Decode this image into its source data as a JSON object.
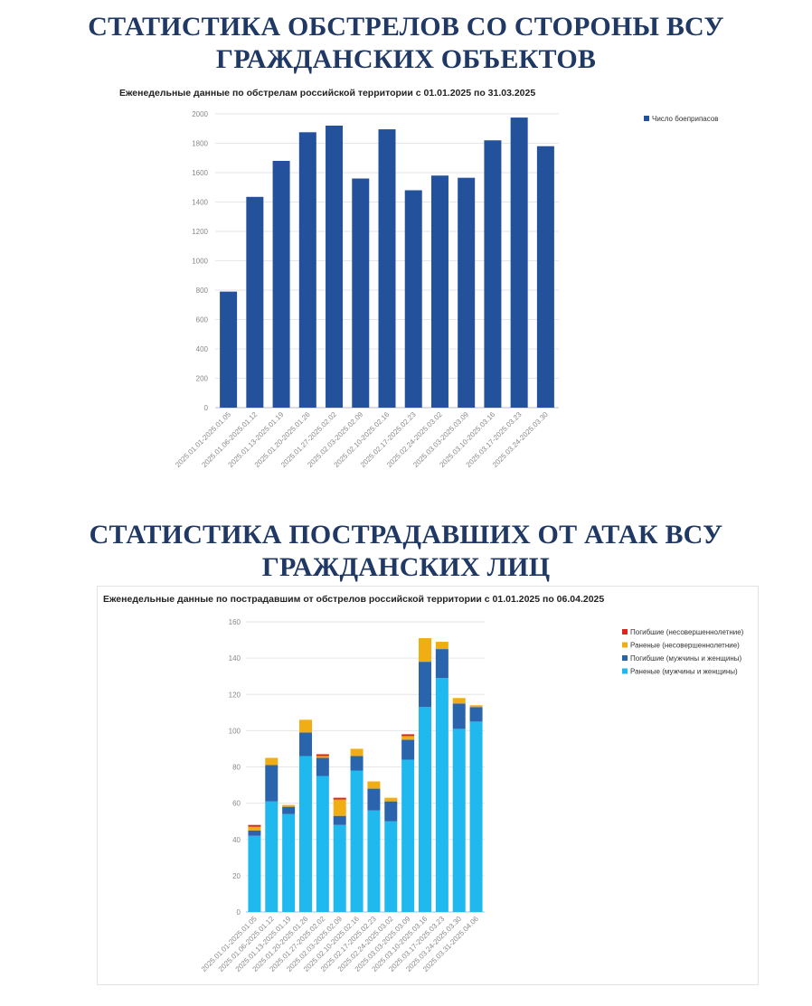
{
  "headings": {
    "first": [
      "СТАТИСТИКА ОБСТРЕЛОВ СО СТОРОНЫ ВСУ",
      "ГРАЖДАНСКИХ ОБЪЕКТОВ"
    ],
    "second": [
      "СТАТИСТИКА ПОСТРАДАВШИХ ОТ АТАК ВСУ",
      "ГРАЖДАНСКИХ ЛИЦ"
    ]
  },
  "colors": {
    "heading": "#1f3864",
    "bar_dark": "#23519c",
    "wounded_adult": "#1fb8ef",
    "killed_adult": "#2a64ad",
    "wounded_minor": "#f0ae14",
    "killed_minor": "#d42b1e"
  },
  "chart_data": [
    {
      "type": "bar",
      "title": "Еженедельные данные по обстрелам российской территории с 01.01.2025 по 31.03.2025",
      "xlabel": "",
      "ylabel": "",
      "ylim": [
        0,
        2000
      ],
      "yticks": [
        0,
        200,
        400,
        600,
        800,
        1000,
        1200,
        1400,
        1600,
        1800,
        2000
      ],
      "legend": "top-right",
      "categories": [
        "2025.01.01-2025.01.05",
        "2025.01.06-2025.01.12",
        "2025.01.13-2025.01.19",
        "2025.01.20-2025.01.26",
        "2025.01.27-2025.02.02",
        "2025.02.03-2025.02.09",
        "2025.02.10-2025.02.16",
        "2025.02.17-2025.02.23",
        "2025.02.24-2025.03.02",
        "2025.03.03-2025.03.09",
        "2025.03.10-2025.03.16",
        "2025.03.17-2025.03.23",
        "2025.03.24-2025.03.30"
      ],
      "series": [
        {
          "name": "Число боеприпасов",
          "values": [
            790,
            1435,
            1680,
            1875,
            1920,
            1560,
            1895,
            1480,
            1580,
            1565,
            1820,
            1975,
            1780
          ]
        }
      ]
    },
    {
      "type": "bar",
      "stacked": true,
      "title": "Еженедельные данные по пострадавшим от обстрелов российской территории с 01.01.2025 по 06.04.2025",
      "xlabel": "",
      "ylabel": "",
      "ylim": [
        0,
        160
      ],
      "yticks": [
        0,
        20,
        40,
        60,
        80,
        100,
        120,
        140,
        160
      ],
      "legend": "top-right",
      "categories": [
        "2025.01.01-2025.01.05",
        "2025.01.06-2025.01.12",
        "2025.01.13-2025.01.19",
        "2025.01.20-2025.01.26",
        "2025.01.27-2025.02.02",
        "2025.02.03-2025.02.09",
        "2025.02.10-2025.02.16",
        "2025.02.17-2025.02.23",
        "2025.02.24-2025.03.02",
        "2025.03.03-2025.03.09",
        "2025.03.10-2025.03.16",
        "2025.03.17-2025.03.23",
        "2025.03.24-2025.03.30",
        "2025.03.31-2025.04.06"
      ],
      "series": [
        {
          "name": "Раненые (мужчины и женщины)",
          "values": [
            42,
            61,
            54,
            86,
            75,
            48,
            78,
            56,
            50,
            84,
            113,
            129,
            101,
            105
          ]
        },
        {
          "name": "Погибшие (мужчины и женщины)",
          "values": [
            3,
            20,
            4,
            13,
            10,
            5,
            8,
            12,
            11,
            11,
            25,
            16,
            14,
            8
          ]
        },
        {
          "name": "Раненые (несовершеннолетние)",
          "values": [
            2,
            4,
            1,
            7,
            1,
            9,
            4,
            4,
            2,
            2,
            13,
            4,
            3,
            1
          ]
        },
        {
          "name": "Погибшие (несовершеннолетние)",
          "values": [
            1,
            0,
            0,
            0,
            1,
            1,
            0,
            0,
            0,
            1,
            0,
            0,
            0,
            0
          ]
        }
      ],
      "legend_order": [
        "Погибшие (несовершеннолетние)",
        "Раненые (несовершеннолетние)",
        "Погибшие (мужчины и женщины)",
        "Раненые (мужчины и женщины)"
      ]
    }
  ]
}
